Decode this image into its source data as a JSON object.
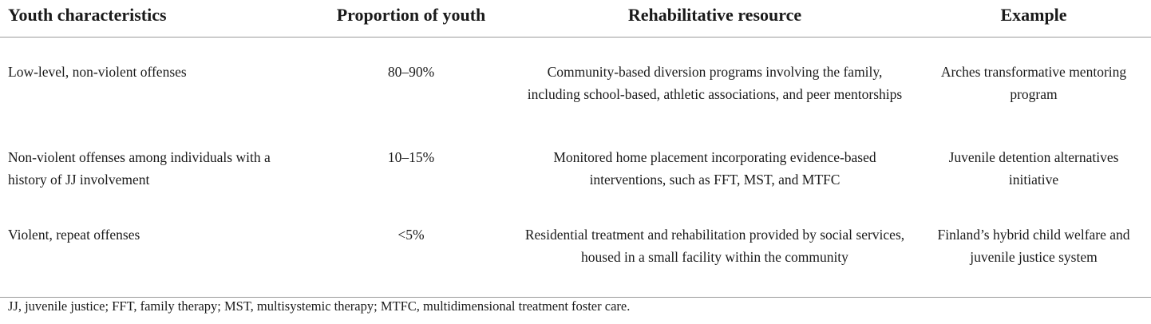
{
  "table": {
    "headers": [
      "Youth characteristics",
      "Proportion of youth",
      "Rehabilitative resource",
      "Example"
    ],
    "rows": [
      {
        "characteristics": "Low-level, non-violent offenses",
        "proportion": "80–90%",
        "resource": "Community-based diversion programs involving the family, including school-based, athletic associations, and peer mentorships",
        "example": "Arches transformative mentoring program"
      },
      {
        "characteristics": "Non-violent offenses among individuals with a history of JJ involvement",
        "proportion": "10–15%",
        "resource": "Monitored home placement incorporating evidence-based interventions, such as FFT, MST, and MTFC",
        "example": "Juvenile detention alternatives initiative"
      },
      {
        "characteristics": "Violent, repeat offenses",
        "proportion": "<5%",
        "resource": "Residential treatment and rehabilitation provided by social services, housed in a small facility within the community",
        "example": "Finland’s hybrid child welfare and juvenile justice system"
      }
    ],
    "footnote": "JJ, juvenile justice; FFT, family therapy; MST, multisystemic therapy; MTFC, multidimensional treatment foster care."
  }
}
